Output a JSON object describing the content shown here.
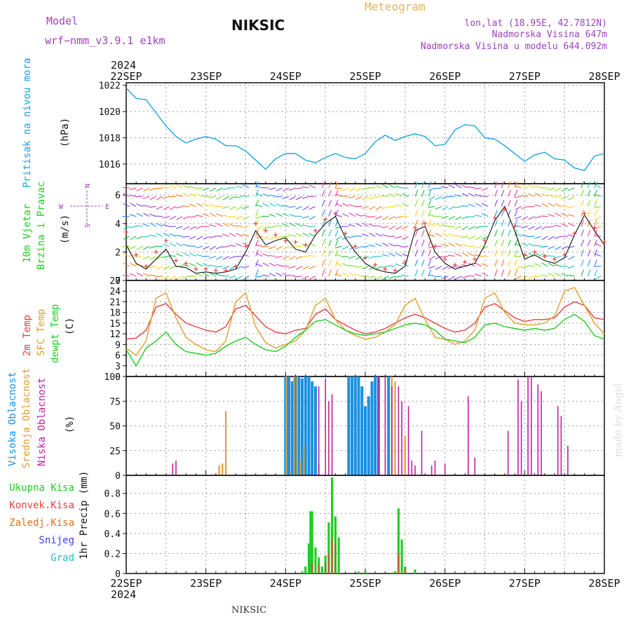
{
  "header": {
    "model_label": "Model",
    "model_name": "wrf−nmm_v3.9.1  e1km",
    "station": "NIKSIC",
    "product": "Meteogram",
    "lonlat": "lon,lat (18.95E, 42.7812N)",
    "elevation": "Nadmorska Visina 647m",
    "model_elevation": "Nadmorska Visina u modelu 644.092m",
    "footer_station": "NIKSIC",
    "watermark": "made by Angel"
  },
  "colors": {
    "pressure": "#1aa6e0",
    "temp2m": "#e84040",
    "sfc_temp": "#e0a030",
    "dewpt": "#22cc22",
    "cloud_high": "#1a90e0",
    "cloud_mid": "#e0a030",
    "cloud_low": "#c020a0",
    "rain_total": "#22cc22",
    "rain_conv": "#e84040",
    "rain_frozen": "#e07020",
    "snow": "#4040e0",
    "graupel": "#20c0c0",
    "wind_speed": "#202020",
    "wind_gust": "#e84040",
    "title_purple": "#a040c0",
    "title_orange": "#e8b060"
  },
  "chart_data": [
    {
      "id": "pressure",
      "type": "line",
      "ylabel_lines": [
        "Pritisak na nivou mora",
        "(hPa)"
      ],
      "ylim": [
        1014.5,
        1022.2
      ],
      "yticks": [
        1016,
        1018,
        1020,
        1022
      ],
      "x_hours": [
        0,
        3,
        6,
        9,
        12,
        15,
        18,
        21,
        24,
        27,
        30,
        33,
        36,
        39,
        42,
        45,
        48,
        51,
        54,
        57,
        60,
        63,
        66,
        69,
        72,
        75,
        78,
        81,
        84,
        87,
        90,
        93,
        96,
        99,
        102,
        105,
        108,
        111,
        114,
        117,
        120,
        123,
        126,
        129,
        132,
        135,
        138,
        141,
        144
      ],
      "values": [
        1021.8,
        1021.0,
        1020.9,
        1019.9,
        1018.9,
        1018.1,
        1017.6,
        1017.9,
        1018.1,
        1017.9,
        1017.4,
        1017.4,
        1017.0,
        1016.3,
        1015.6,
        1016.4,
        1016.8,
        1016.8,
        1016.3,
        1016.1,
        1016.5,
        1016.8,
        1016.5,
        1016.4,
        1016.8,
        1017.7,
        1018.2,
        1017.8,
        1018.1,
        1018.3,
        1018.1,
        1017.4,
        1017.5,
        1018.6,
        1019.0,
        1018.9,
        1018.0,
        1017.9,
        1017.4,
        1016.8,
        1016.2,
        1016.7,
        1016.9,
        1016.4,
        1016.3,
        1015.7,
        1015.5,
        1016.6,
        1016.8
      ]
    },
    {
      "id": "wind",
      "type": "line",
      "ylabel_lines": [
        "10m Vjetar",
        "Brzina i Pravac",
        "(m/s)"
      ],
      "compass": {
        "n": "N",
        "e": "E",
        "w": "W",
        "s": "S"
      },
      "ylim": [
        0,
        6.8
      ],
      "yticks": [
        0,
        2,
        4,
        6
      ],
      "x_hours": [
        0,
        3,
        6,
        9,
        12,
        15,
        18,
        21,
        24,
        27,
        30,
        33,
        36,
        39,
        42,
        45,
        48,
        51,
        54,
        57,
        60,
        63,
        66,
        69,
        72,
        75,
        78,
        81,
        84,
        87,
        90,
        93,
        96,
        99,
        102,
        105,
        108,
        111,
        114,
        117,
        120,
        123,
        126,
        129,
        132,
        135,
        138,
        141,
        144
      ],
      "speed": [
        2.5,
        1.2,
        0.8,
        1.5,
        2.2,
        1.0,
        0.9,
        0.5,
        0.6,
        0.5,
        0.6,
        0.8,
        2.0,
        3.5,
        2.5,
        2.8,
        3.0,
        2.2,
        2.0,
        3.2,
        4.0,
        4.5,
        3.0,
        2.0,
        1.2,
        0.8,
        0.6,
        0.5,
        1.0,
        3.5,
        3.8,
        2.0,
        1.2,
        0.8,
        1.0,
        1.2,
        2.5,
        4.2,
        5.2,
        3.5,
        1.5,
        1.8,
        1.4,
        1.2,
        1.6,
        3.2,
        4.6,
        3.5,
        2.5
      ],
      "gust": [
        3.4,
        1.8,
        1.0,
        2.0,
        2.8,
        1.4,
        1.2,
        0.8,
        0.8,
        0.7,
        0.7,
        1.0,
        2.4,
        4.0,
        3.5,
        3.2,
        2.8,
        2.7,
        2.5,
        3.5,
        4.3,
        4.7,
        3.3,
        2.4,
        1.6,
        1.1,
        0.8,
        0.7,
        1.3,
        3.7,
        4.0,
        2.4,
        1.5,
        1.1,
        1.3,
        1.5,
        2.8,
        4.4,
        5.0,
        3.8,
        1.8,
        2.0,
        1.7,
        1.5,
        1.8,
        3.3,
        4.7,
        3.7,
        2.7
      ],
      "barb_color_bands": [
        "#ff4080",
        "#ff8020",
        "#ffd020",
        "#80e020",
        "#20c040",
        "#20c0c0",
        "#2090ff",
        "#8040ff",
        "#c040c0"
      ]
    },
    {
      "id": "temperature",
      "type": "line",
      "ylabel_lines": [
        "2m Temp",
        "SFC Temp",
        "dewpt Temp",
        "(C)"
      ],
      "ylim": [
        0,
        27
      ],
      "yticks": [
        0,
        3,
        6,
        9,
        12,
        15,
        18,
        21,
        24,
        27
      ],
      "x_hours": [
        0,
        3,
        6,
        9,
        12,
        15,
        18,
        21,
        24,
        27,
        30,
        33,
        36,
        39,
        42,
        45,
        48,
        51,
        54,
        57,
        60,
        63,
        66,
        69,
        72,
        75,
        78,
        81,
        84,
        87,
        90,
        93,
        96,
        99,
        102,
        105,
        108,
        111,
        114,
        117,
        120,
        123,
        126,
        129,
        132,
        135,
        138,
        141,
        144
      ],
      "series": [
        {
          "name": "2m Temp",
          "color": "#e84040",
          "values": [
            10.5,
            10.8,
            13.0,
            19.5,
            20.5,
            17.5,
            15.0,
            14.0,
            13.0,
            12.5,
            14.0,
            19.0,
            20.0,
            17.0,
            14.0,
            12.5,
            12.0,
            13.0,
            13.5,
            17.5,
            19.0,
            16.0,
            14.5,
            13.0,
            12.0,
            12.5,
            13.5,
            15.0,
            16.5,
            17.5,
            16.5,
            15.0,
            13.5,
            12.5,
            13.0,
            15.0,
            19.5,
            20.5,
            18.5,
            16.5,
            15.5,
            16.0,
            16.0,
            16.5,
            19.5,
            21.0,
            20.0,
            16.5,
            16.0
          ]
        },
        {
          "name": "SFC Temp",
          "color": "#e0a030",
          "values": [
            8.0,
            6.0,
            10.0,
            22.0,
            23.5,
            16.5,
            11.0,
            9.0,
            7.5,
            7.0,
            10.0,
            21.0,
            23.5,
            14.0,
            9.5,
            8.0,
            9.0,
            10.0,
            13.0,
            20.0,
            22.0,
            16.0,
            13.0,
            11.5,
            10.5,
            11.0,
            12.5,
            14.5,
            20.0,
            22.0,
            16.0,
            11.0,
            10.5,
            9.0,
            10.0,
            13.0,
            22.0,
            23.5,
            18.0,
            15.0,
            14.5,
            14.5,
            15.0,
            17.0,
            24.0,
            25.0,
            20.0,
            15.0,
            12.0
          ]
        },
        {
          "name": "dewpt Temp",
          "color": "#22cc22",
          "values": [
            7.5,
            3.0,
            8.0,
            10.0,
            12.5,
            9.0,
            7.0,
            6.5,
            6.0,
            6.5,
            8.5,
            10.0,
            11.0,
            9.0,
            7.5,
            7.0,
            8.5,
            11.0,
            13.0,
            15.5,
            16.0,
            14.5,
            13.0,
            12.0,
            11.5,
            12.0,
            12.5,
            13.5,
            14.5,
            15.0,
            14.5,
            13.0,
            10.5,
            10.0,
            9.5,
            11.0,
            14.5,
            15.0,
            14.0,
            13.5,
            13.0,
            13.5,
            13.0,
            13.5,
            16.0,
            17.5,
            15.5,
            11.5,
            10.5
          ]
        }
      ]
    },
    {
      "id": "cloud",
      "type": "bar",
      "ylabel_lines": [
        "Visoka Oblacnost",
        "Srednja Oblacnost",
        "Niska Oblacnost",
        "(%)"
      ],
      "ylim": [
        0,
        100
      ],
      "yticks": [
        0,
        25,
        50,
        75,
        100
      ],
      "series": [
        {
          "name": "Visoka Oblacnost",
          "color": "#1a90e0",
          "points": [
            [
              48,
              100
            ],
            [
              48.5,
              100
            ],
            [
              49,
              100
            ],
            [
              50,
              95
            ],
            [
              51,
              100
            ],
            [
              52,
              100
            ],
            [
              53,
              98
            ],
            [
              54,
              100
            ],
            [
              55,
              100
            ],
            [
              56,
              95
            ],
            [
              57,
              90
            ],
            [
              67,
              100
            ],
            [
              68,
              100
            ],
            [
              69,
              100
            ],
            [
              70,
              100
            ],
            [
              71,
              90
            ],
            [
              72,
              70
            ],
            [
              73,
              80
            ],
            [
              74,
              95
            ],
            [
              75,
              100
            ],
            [
              76,
              100
            ],
            [
              79,
              100
            ]
          ]
        },
        {
          "name": "Srednja Oblacnost",
          "color": "#e0a030",
          "points": [
            [
              28,
              10
            ],
            [
              29,
              12
            ],
            [
              30,
              65
            ],
            [
              48.2,
              100
            ],
            [
              50.5,
              100
            ],
            [
              51.5,
              100
            ],
            [
              52.5,
              15
            ],
            [
              53.5,
              30
            ],
            [
              58,
              12
            ],
            [
              80,
              100
            ],
            [
              81,
              95
            ],
            [
              84,
              40
            ]
          ]
        },
        {
          "name": "Niska Oblacnost",
          "color": "#c020a0",
          "points": [
            [
              14,
              12
            ],
            [
              15,
              15
            ],
            [
              58,
              90
            ],
            [
              60,
              98
            ],
            [
              61,
              75
            ],
            [
              62,
              82
            ],
            [
              76,
              100
            ],
            [
              78,
              100
            ],
            [
              80,
              90
            ],
            [
              82,
              90
            ],
            [
              83,
              75
            ],
            [
              85,
              70
            ],
            [
              86,
              15
            ],
            [
              87,
              10
            ],
            [
              89,
              45
            ],
            [
              92,
              10
            ],
            [
              93,
              15
            ],
            [
              96,
              12
            ],
            [
              103,
              80
            ],
            [
              105,
              18
            ],
            [
              115,
              45
            ],
            [
              118,
              97
            ],
            [
              119,
              75
            ],
            [
              121,
              100
            ],
            [
              122,
              100
            ],
            [
              124,
              92
            ],
            [
              125,
              85
            ],
            [
              130,
              70
            ],
            [
              131,
              60
            ],
            [
              133,
              30
            ]
          ]
        }
      ]
    },
    {
      "id": "precip",
      "type": "bar",
      "ylabel_lines": [
        "1hr Precip (mm)"
      ],
      "legend": [
        "Ukupna Kisa",
        "Konvek.Kisa",
        "Zaledj.Kisa",
        "Snijeg",
        "Grad"
      ],
      "ylim": [
        0,
        0.98
      ],
      "yticks": [
        0,
        0.2,
        0.4,
        0.6,
        0.8
      ],
      "x_categories": [
        "22SEP",
        "23SEP",
        "24SEP",
        "25SEP",
        "26SEP",
        "27SEP",
        "28SEP"
      ],
      "top_year": "2024",
      "bottom_year": "2024",
      "series": [
        {
          "name": "Ukupna Kisa",
          "color": "#22cc22",
          "points": [
            [
              53,
              0.02
            ],
            [
              54,
              0.07
            ],
            [
              55,
              0.3
            ],
            [
              55.5,
              0.62
            ],
            [
              56,
              0.62
            ],
            [
              57,
              0.26
            ],
            [
              58,
              0.16
            ],
            [
              59,
              0.07
            ],
            [
              60,
              0.18
            ],
            [
              61,
              0.51
            ],
            [
              62,
              0.96
            ],
            [
              63,
              0.57
            ],
            [
              64,
              0.36
            ],
            [
              70,
              0.02
            ],
            [
              72,
              0.02
            ],
            [
              80,
              0.01
            ],
            [
              81,
              0.02
            ],
            [
              82,
              0.65
            ],
            [
              83,
              0.34
            ],
            [
              84,
              0.07
            ],
            [
              87,
              0.04
            ]
          ]
        },
        {
          "name": "Konvek.Kisa",
          "color": "#e84040",
          "points": [
            [
              56,
              0.1
            ],
            [
              58,
              0.08
            ],
            [
              60,
              0.12
            ],
            [
              61,
              0.2
            ],
            [
              62,
              0.35
            ],
            [
              63,
              0.3
            ],
            [
              82,
              0.2
            ],
            [
              84,
              0.05
            ]
          ]
        }
      ]
    }
  ]
}
